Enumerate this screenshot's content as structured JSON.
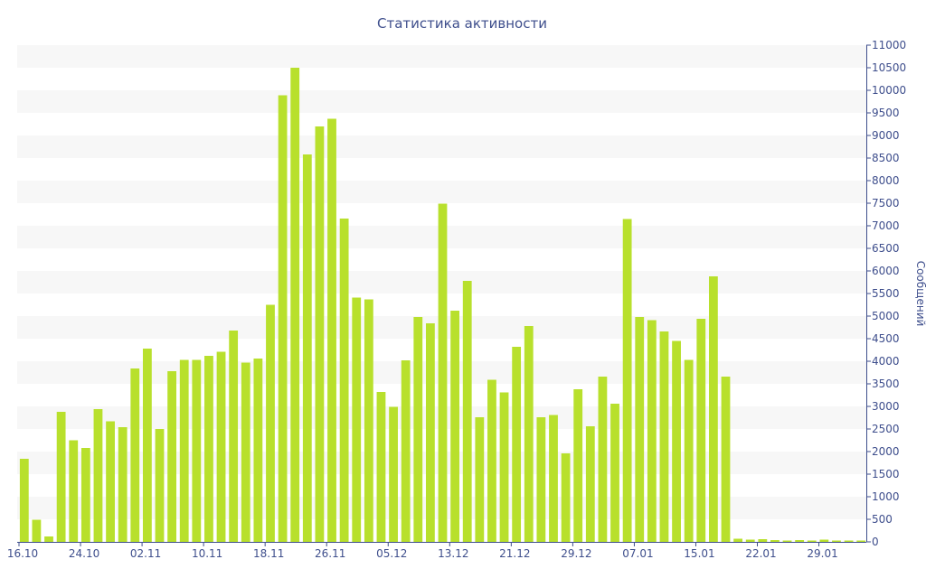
{
  "chart_data": {
    "type": "bar",
    "title": "Статистика активности",
    "xlabel": "",
    "ylabel": "Сообщений",
    "y_axis_side": "right",
    "ylim": [
      0,
      11000
    ],
    "y_tick_step": 500,
    "grid": "alternating horizontal bands",
    "legend": "none",
    "x_tick_labels": [
      "16.10",
      "24.10",
      "02.11",
      "10.11",
      "18.11",
      "26.11",
      "05.12",
      "13.12",
      "21.12",
      "29.12",
      "07.01",
      "15.01",
      "22.01",
      "29.01"
    ],
    "x_tick_bar_index": [
      0,
      5,
      10,
      15,
      20,
      25,
      30,
      35,
      40,
      45,
      50,
      55,
      60,
      65
    ],
    "values": [
      1840,
      490,
      120,
      2880,
      2250,
      2080,
      2940,
      2670,
      2540,
      3840,
      4280,
      2500,
      3780,
      4030,
      4030,
      4120,
      4210,
      4680,
      3970,
      4060,
      5250,
      9890,
      10500,
      8580,
      9200,
      9370,
      7160,
      5410,
      5370,
      3320,
      2990,
      4020,
      4980,
      4840,
      7490,
      5120,
      5780,
      2760,
      3590,
      3310,
      4320,
      4780,
      2760,
      2810,
      1960,
      3380,
      2560,
      3660,
      3060,
      7150,
      4980,
      4910,
      4660,
      4450,
      4030,
      4940,
      5880,
      3660,
      70,
      50,
      60,
      40,
      30,
      40,
      30,
      50,
      30,
      30,
      30
    ],
    "colors": {
      "bar": "#b8e02c",
      "band": "#f7f7f7",
      "axis": "#3e4e8c",
      "text": "#3e4e8c"
    }
  }
}
